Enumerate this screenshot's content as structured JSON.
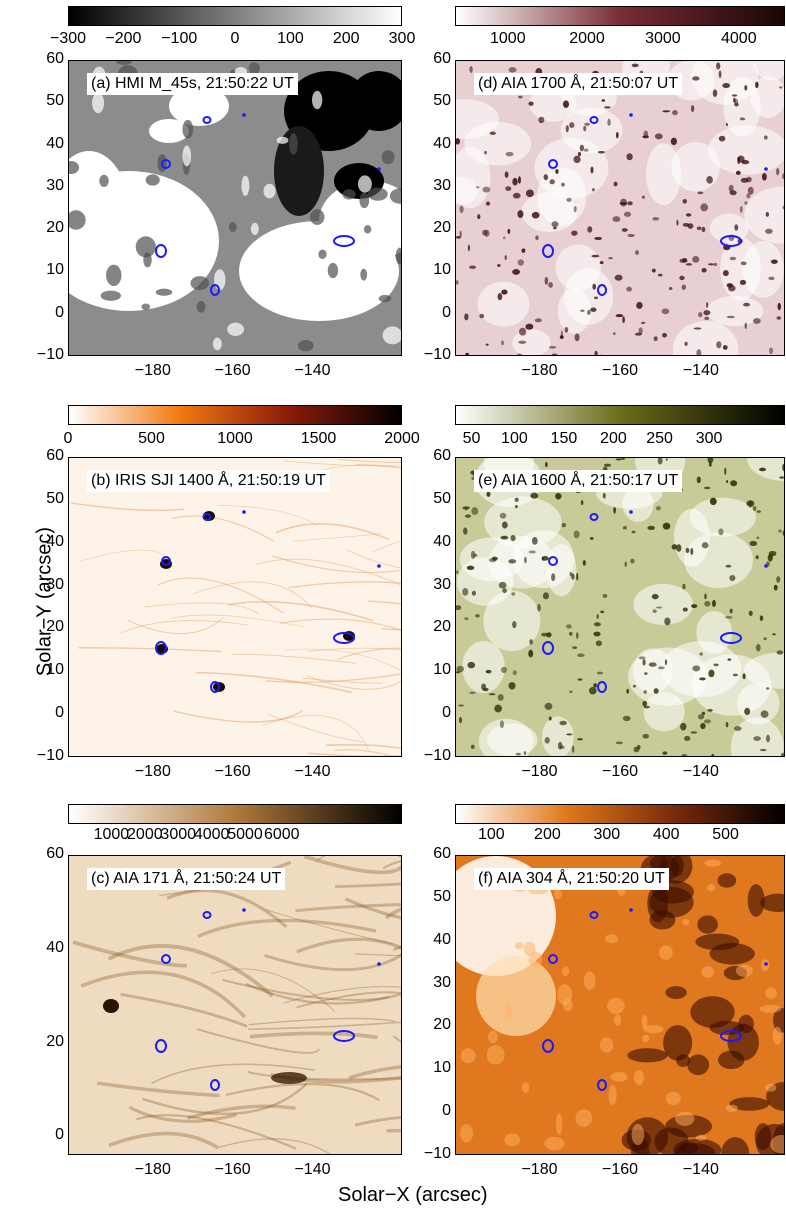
{
  "axes": {
    "xlabel": "Solar−X (arcsec)",
    "ylabel": "Solar−Y (arcsec)",
    "xticks": [
      "−180",
      "−160",
      "−140"
    ],
    "yticks": [
      "60",
      "50",
      "40",
      "30",
      "20",
      "10",
      "0",
      "−10"
    ],
    "yticks_c": [
      "60",
      "40",
      "20",
      "0"
    ]
  },
  "panels": [
    {
      "id": "a",
      "label": "(a) HMI M_45s, 21:50:22 UT",
      "cbar_ticks": [
        "−300",
        "−200",
        "−100",
        "0",
        "100",
        "200",
        "300"
      ],
      "cbar_gradient": [
        "#000000",
        "#ffffff"
      ]
    },
    {
      "id": "d",
      "label": "(d) AIA 1700 Å, 21:50:07 UT",
      "cbar_ticks": [
        "1000",
        "2000",
        "3000",
        "4000"
      ],
      "cbar_gradient": [
        "#ffffff",
        "#7a2c35",
        "#1a0608"
      ]
    },
    {
      "id": "b",
      "label": "(b) IRIS SJI 1400 Å, 21:50:19 UT",
      "cbar_ticks": [
        "0",
        "500",
        "1000",
        "1500",
        "2000"
      ],
      "cbar_gradient": [
        "#ffffff",
        "#f07a10",
        "#8a1a0a",
        "#000000"
      ]
    },
    {
      "id": "e",
      "label": "(e) AIA 1600 Å, 21:50:17 UT",
      "cbar_ticks": [
        "50",
        "100",
        "150",
        "200",
        "250",
        "300"
      ],
      "cbar_gradient": [
        "#ffffff",
        "#6b6e1a",
        "#000000"
      ]
    },
    {
      "id": "c",
      "label": "(c) AIA 171 Å, 21:50:24 UT",
      "cbar_ticks": [
        "1000",
        "2000",
        "3000",
        "4000",
        "5000",
        "6000"
      ],
      "cbar_gradient": [
        "#ffffff",
        "#b07a3a",
        "#000000"
      ]
    },
    {
      "id": "f",
      "label": "(f) AIA 304 Å, 21:50:20 UT",
      "cbar_ticks": [
        "100",
        "200",
        "300",
        "400",
        "500"
      ],
      "cbar_gradient": [
        "#ffffff",
        "#e07a1a",
        "#7a2a0a",
        "#000000"
      ]
    }
  ],
  "colors": {
    "contour": "#1a1aff"
  }
}
